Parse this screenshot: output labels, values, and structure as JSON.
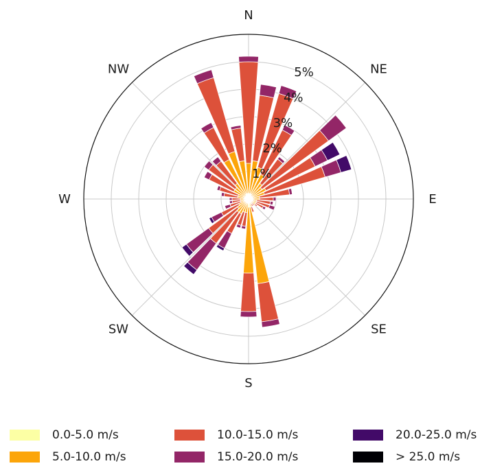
{
  "chart_data": {
    "type": "windrose",
    "direction_labels": [
      "N",
      "NE",
      "E",
      "SE",
      "S",
      "SW",
      "W",
      "NW"
    ],
    "radial_ticks": [
      "1%",
      "2%",
      "3%",
      "4%",
      "5%"
    ],
    "radial_tick_values": [
      1,
      2,
      3,
      4,
      5
    ],
    "rmax": 6,
    "sector_count": 36,
    "speed_bins": [
      {
        "name": "0.0-5.0 m/s",
        "color": "#fcffa4"
      },
      {
        "name": "5.0-10.0 m/s",
        "color": "#fca50a"
      },
      {
        "name": "10.0-15.0 m/s",
        "color": "#dd513a"
      },
      {
        "name": "15.0-20.0 m/s",
        "color": "#932667"
      },
      {
        "name": "20.0-25.0 m/s",
        "color": "#420a68"
      },
      {
        "name": "> 25.0 m/s",
        "color": "#000004"
      }
    ],
    "sectors": [
      {
        "dir": 0,
        "values": [
          0.2,
          1.1,
          3.7,
          0.2,
          0,
          0
        ]
      },
      {
        "dir": 10,
        "values": [
          0.2,
          1.2,
          2.4,
          0.4,
          0,
          0
        ]
      },
      {
        "dir": 20,
        "values": [
          0.2,
          1.0,
          2.8,
          0.3,
          0,
          0
        ]
      },
      {
        "dir": 30,
        "values": [
          0.2,
          0.8,
          1.8,
          0.2,
          0,
          0
        ]
      },
      {
        "dir": 40,
        "values": [
          0.1,
          0.6,
          1.1,
          0.1,
          0,
          0
        ]
      },
      {
        "dir": 50,
        "values": [
          0.1,
          0.5,
          3.0,
          0.8,
          0,
          0
        ]
      },
      {
        "dir": 60,
        "values": [
          0.1,
          0.6,
          2.0,
          0.5,
          0.5,
          0
        ]
      },
      {
        "dir": 70,
        "values": [
          0.1,
          0.5,
          2.3,
          0.6,
          0.4,
          0
        ]
      },
      {
        "dir": 80,
        "values": [
          0.1,
          0.3,
          1.1,
          0.1,
          0,
          0
        ]
      },
      {
        "dir": 90,
        "values": [
          0.1,
          0.3,
          0.5,
          0.1,
          0,
          0
        ]
      },
      {
        "dir": 100,
        "values": [
          0.1,
          0.2,
          0.5,
          0.1,
          0,
          0
        ]
      },
      {
        "dir": 110,
        "values": [
          0.1,
          0.2,
          0.5,
          0.2,
          0,
          0
        ]
      },
      {
        "dir": 120,
        "values": [
          0.1,
          0.2,
          0.3,
          0.1,
          0,
          0
        ]
      },
      {
        "dir": 130,
        "values": [
          0.1,
          0.2,
          0.1,
          0,
          0,
          0
        ]
      },
      {
        "dir": 140,
        "values": [
          0.1,
          0.1,
          0.1,
          0,
          0,
          0
        ]
      },
      {
        "dir": 150,
        "values": [
          0.1,
          0.1,
          0.1,
          0,
          0,
          0
        ]
      },
      {
        "dir": 160,
        "values": [
          0.1,
          0.2,
          0.2,
          0,
          0,
          0
        ]
      },
      {
        "dir": 170,
        "values": [
          0.3,
          2.8,
          1.4,
          0.2,
          0,
          0
        ]
      },
      {
        "dir": 180,
        "values": [
          0.3,
          2.4,
          1.4,
          0.2,
          0,
          0
        ]
      },
      {
        "dir": 190,
        "values": [
          0.1,
          0.4,
          0.5,
          0.1,
          0,
          0
        ]
      },
      {
        "dir": 200,
        "values": [
          0.1,
          0.4,
          0.5,
          0.1,
          0,
          0
        ]
      },
      {
        "dir": 210,
        "values": [
          0.1,
          0.5,
          0.8,
          0.6,
          0.1,
          0
        ]
      },
      {
        "dir": 220,
        "values": [
          0.1,
          0.5,
          1.4,
          1.2,
          0.2,
          0
        ]
      },
      {
        "dir": 230,
        "values": [
          0.1,
          0.4,
          1.3,
          1.0,
          0.2,
          0
        ]
      },
      {
        "dir": 240,
        "values": [
          0.1,
          0.3,
          0.7,
          0.4,
          0.1,
          0
        ]
      },
      {
        "dir": 250,
        "values": [
          0.1,
          0.2,
          0.4,
          0.2,
          0,
          0
        ]
      },
      {
        "dir": 260,
        "values": [
          0.1,
          0.2,
          0.3,
          0.1,
          0,
          0
        ]
      },
      {
        "dir": 270,
        "values": [
          0.1,
          0.2,
          0.3,
          0.1,
          0,
          0
        ]
      },
      {
        "dir": 280,
        "values": [
          0.1,
          0.3,
          0.5,
          0.1,
          0,
          0
        ]
      },
      {
        "dir": 290,
        "values": [
          0.1,
          0.3,
          0.7,
          0.1,
          0,
          0
        ]
      },
      {
        "dir": 300,
        "values": [
          0.1,
          0.5,
          1.0,
          0.2,
          0,
          0
        ]
      },
      {
        "dir": 310,
        "values": [
          0.1,
          0.5,
          1.2,
          0.2,
          0,
          0
        ]
      },
      {
        "dir": 320,
        "values": [
          0.1,
          0.6,
          1.0,
          0.2,
          0,
          0
        ]
      },
      {
        "dir": 330,
        "values": [
          0.2,
          1.4,
          1.3,
          0.2,
          0,
          0
        ]
      },
      {
        "dir": 340,
        "values": [
          0.2,
          1.6,
          2.8,
          0.3,
          0,
          0
        ]
      },
      {
        "dir": 350,
        "values": [
          0.2,
          1.2,
          1.2,
          0.1,
          0,
          0
        ]
      }
    ]
  }
}
